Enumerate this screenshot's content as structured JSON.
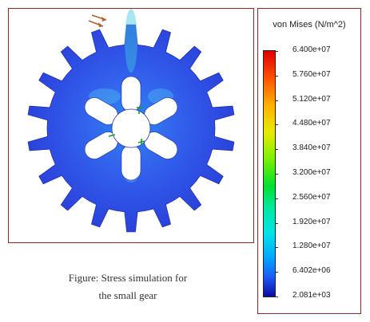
{
  "caption": {
    "line1": "Figure: Stress simulation for",
    "line2": "the small gear"
  },
  "legend": {
    "title": "von Mises (N/m^2)",
    "ticks": [
      "6.400e+07",
      "5.760e+07",
      "5.120e+07",
      "4.480e+07",
      "3.840e+07",
      "3.200e+07",
      "2.560e+07",
      "1.920e+07",
      "1.280e+07",
      "6.402e+06",
      "2.081e+03"
    ],
    "colors": {
      "max": "#e00000",
      "min": "#0a0aa0"
    }
  },
  "gear": {
    "teeth": 18,
    "spokes": 6,
    "body_color": "#2e4fe4",
    "frame_color": "#a0221f"
  }
}
